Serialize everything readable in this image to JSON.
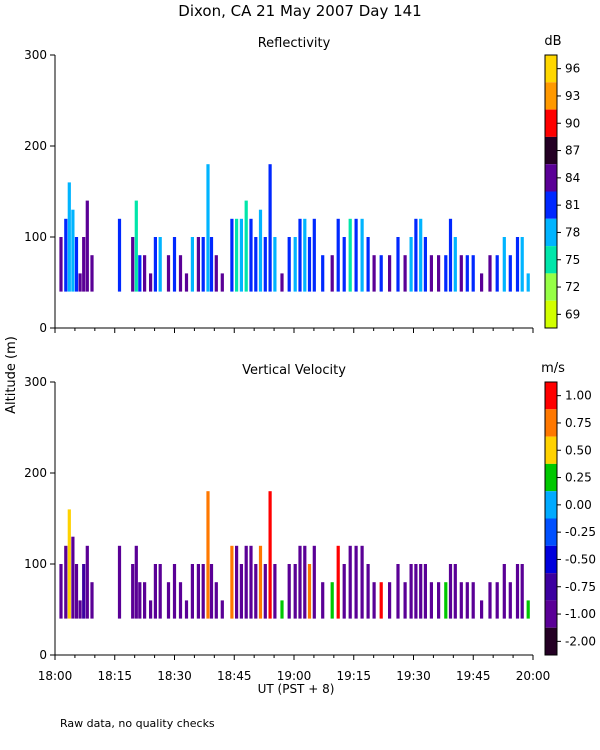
{
  "title": "Dixon, CA 21 May 2007  Day 141",
  "footnote": "Raw data, no quality checks",
  "chart_data": [
    {
      "type": "heatmap",
      "title": "Reflectivity",
      "xlabel": "UT  (PST + 8)",
      "ylabel": "Altitude (m)",
      "x_ticks": [
        "18:00",
        "18:15",
        "18:30",
        "18:45",
        "19:00",
        "19:15",
        "19:30",
        "19:45",
        "20:00"
      ],
      "xlim_minutes": [
        0,
        120
      ],
      "y_ticks": [
        0,
        100,
        200,
        300
      ],
      "ylim": [
        0,
        300
      ],
      "colorbar": {
        "unit": "dB",
        "labels": [
          "96",
          "93",
          "90",
          "87",
          "84",
          "81",
          "78",
          "75",
          "72",
          "69"
        ],
        "colors": [
          "#ffd700",
          "#ff9900",
          "#ff0000",
          "#240024",
          "#5a0096",
          "#0028ff",
          "#00b4ff",
          "#00e6aa",
          "#96ff46",
          "#d2ff00"
        ]
      },
      "columns": [
        {
          "t": 1.5,
          "top": 100,
          "color": "#5a0096"
        },
        {
          "t": 2.7,
          "top": 120,
          "color": "#0028ff"
        },
        {
          "t": 3.6,
          "top": 160,
          "color": "#00b4ff"
        },
        {
          "t": 4.5,
          "top": 130,
          "color": "#00b4ff"
        },
        {
          "t": 5.4,
          "top": 100,
          "color": "#0028ff"
        },
        {
          "t": 6.3,
          "top": 60,
          "color": "#5a0096"
        },
        {
          "t": 7.2,
          "top": 100,
          "color": "#5a0096"
        },
        {
          "t": 8.1,
          "top": 140,
          "color": "#5a0096"
        },
        {
          "t": 9.3,
          "top": 80,
          "color": "#5a0096"
        },
        {
          "t": 16.2,
          "top": 120,
          "color": "#0028ff"
        },
        {
          "t": 19.5,
          "top": 100,
          "color": "#5a0096"
        },
        {
          "t": 20.4,
          "top": 140,
          "color": "#00e6aa"
        },
        {
          "t": 21.3,
          "top": 80,
          "color": "#0028ff"
        },
        {
          "t": 22.5,
          "top": 80,
          "color": "#5a0096"
        },
        {
          "t": 24.0,
          "top": 60,
          "color": "#5a0096"
        },
        {
          "t": 25.2,
          "top": 100,
          "color": "#0028ff"
        },
        {
          "t": 26.4,
          "top": 100,
          "color": "#00b4ff"
        },
        {
          "t": 28.5,
          "top": 80,
          "color": "#5a0096"
        },
        {
          "t": 30.0,
          "top": 100,
          "color": "#0028ff"
        },
        {
          "t": 31.5,
          "top": 80,
          "color": "#5a0096"
        },
        {
          "t": 33.0,
          "top": 60,
          "color": "#5a0096"
        },
        {
          "t": 34.5,
          "top": 100,
          "color": "#00b4ff"
        },
        {
          "t": 36.0,
          "top": 100,
          "color": "#5a0096"
        },
        {
          "t": 37.2,
          "top": 100,
          "color": "#0028ff"
        },
        {
          "t": 38.4,
          "top": 180,
          "color": "#00b4ff"
        },
        {
          "t": 39.3,
          "top": 100,
          "color": "#0028ff"
        },
        {
          "t": 40.5,
          "top": 80,
          "color": "#5a0096"
        },
        {
          "t": 42.0,
          "top": 60,
          "color": "#5a0096"
        },
        {
          "t": 44.4,
          "top": 120,
          "color": "#0028ff"
        },
        {
          "t": 45.6,
          "top": 120,
          "color": "#00e6aa"
        },
        {
          "t": 46.8,
          "top": 120,
          "color": "#00b4ff"
        },
        {
          "t": 48.0,
          "top": 140,
          "color": "#00e6aa"
        },
        {
          "t": 49.2,
          "top": 120,
          "color": "#0028ff"
        },
        {
          "t": 50.4,
          "top": 100,
          "color": "#0028ff"
        },
        {
          "t": 51.6,
          "top": 130,
          "color": "#00b4ff"
        },
        {
          "t": 52.8,
          "top": 100,
          "color": "#0028ff"
        },
        {
          "t": 54.0,
          "top": 180,
          "color": "#0028ff"
        },
        {
          "t": 55.2,
          "top": 100,
          "color": "#00b4ff"
        },
        {
          "t": 57.0,
          "top": 60,
          "color": "#5a0096"
        },
        {
          "t": 58.8,
          "top": 100,
          "color": "#0028ff"
        },
        {
          "t": 60.3,
          "top": 100,
          "color": "#00b4ff"
        },
        {
          "t": 61.5,
          "top": 120,
          "color": "#0028ff"
        },
        {
          "t": 62.7,
          "top": 120,
          "color": "#00b4ff"
        },
        {
          "t": 63.9,
          "top": 100,
          "color": "#0028ff"
        },
        {
          "t": 65.1,
          "top": 120,
          "color": "#0028ff"
        },
        {
          "t": 67.2,
          "top": 80,
          "color": "#0028ff"
        },
        {
          "t": 69.6,
          "top": 80,
          "color": "#5a0096"
        },
        {
          "t": 71.1,
          "top": 120,
          "color": "#0028ff"
        },
        {
          "t": 72.6,
          "top": 100,
          "color": "#0028ff"
        },
        {
          "t": 74.1,
          "top": 120,
          "color": "#00e6aa"
        },
        {
          "t": 75.6,
          "top": 120,
          "color": "#0028ff"
        },
        {
          "t": 77.1,
          "top": 120,
          "color": "#00b4ff"
        },
        {
          "t": 78.6,
          "top": 100,
          "color": "#0028ff"
        },
        {
          "t": 80.1,
          "top": 80,
          "color": "#5a0096"
        },
        {
          "t": 81.9,
          "top": 80,
          "color": "#0028ff"
        },
        {
          "t": 84.0,
          "top": 80,
          "color": "#5a0096"
        },
        {
          "t": 86.1,
          "top": 100,
          "color": "#0028ff"
        },
        {
          "t": 87.9,
          "top": 80,
          "color": "#5a0096"
        },
        {
          "t": 89.4,
          "top": 100,
          "color": "#00b4ff"
        },
        {
          "t": 90.6,
          "top": 120,
          "color": "#0028ff"
        },
        {
          "t": 91.8,
          "top": 120,
          "color": "#00b4ff"
        },
        {
          "t": 93.0,
          "top": 100,
          "color": "#0028ff"
        },
        {
          "t": 94.5,
          "top": 80,
          "color": "#5a0096"
        },
        {
          "t": 96.3,
          "top": 80,
          "color": "#5a0096"
        },
        {
          "t": 98.1,
          "top": 80,
          "color": "#0028ff"
        },
        {
          "t": 99.3,
          "top": 120,
          "color": "#0028ff"
        },
        {
          "t": 100.5,
          "top": 100,
          "color": "#00b4ff"
        },
        {
          "t": 102.0,
          "top": 80,
          "color": "#5a0096"
        },
        {
          "t": 103.5,
          "top": 80,
          "color": "#0028ff"
        },
        {
          "t": 105.0,
          "top": 80,
          "color": "#0028ff"
        },
        {
          "t": 107.1,
          "top": 60,
          "color": "#5a0096"
        },
        {
          "t": 109.2,
          "top": 80,
          "color": "#5a0096"
        },
        {
          "t": 111.0,
          "top": 80,
          "color": "#0028ff"
        },
        {
          "t": 112.8,
          "top": 100,
          "color": "#00b4ff"
        },
        {
          "t": 114.3,
          "top": 80,
          "color": "#0028ff"
        },
        {
          "t": 116.1,
          "top": 100,
          "color": "#0028ff"
        },
        {
          "t": 117.3,
          "top": 100,
          "color": "#00b4ff"
        },
        {
          "t": 118.8,
          "top": 60,
          "color": "#00b4ff"
        }
      ]
    },
    {
      "type": "heatmap",
      "title": "Vertical Velocity",
      "xlabel": "UT  (PST + 8)",
      "ylabel": "Altitude (m)",
      "x_ticks": [
        "18:00",
        "18:15",
        "18:30",
        "18:45",
        "19:00",
        "19:15",
        "19:30",
        "19:45",
        "20:00"
      ],
      "xlim_minutes": [
        0,
        120
      ],
      "y_ticks": [
        0,
        100,
        200,
        300
      ],
      "ylim": [
        0,
        300
      ],
      "colorbar": {
        "unit": "m/s",
        "labels": [
          "1.00",
          "0.75",
          "0.50",
          "0.25",
          "0.00",
          "-0.25",
          "-0.50",
          "-0.75",
          "-1.00",
          "-2.00"
        ],
        "colors": [
          "#ff0000",
          "#ff7800",
          "#ffd200",
          "#00c800",
          "#00aaff",
          "#0050ff",
          "#0000dc",
          "#3c00a0",
          "#5a0096",
          "#240024"
        ]
      },
      "columns": [
        {
          "t": 1.5,
          "top": 100,
          "color": "#5a0096"
        },
        {
          "t": 2.7,
          "top": 120,
          "color": "#5a0096"
        },
        {
          "t": 3.6,
          "top": 160,
          "color": "#ffd200"
        },
        {
          "t": 4.5,
          "top": 130,
          "color": "#5a0096"
        },
        {
          "t": 5.4,
          "top": 100,
          "color": "#5a0096"
        },
        {
          "t": 6.3,
          "top": 60,
          "color": "#5a0096"
        },
        {
          "t": 7.2,
          "top": 100,
          "color": "#3c00a0"
        },
        {
          "t": 8.1,
          "top": 120,
          "color": "#5a0096"
        },
        {
          "t": 9.3,
          "top": 80,
          "color": "#5a0096"
        },
        {
          "t": 16.2,
          "top": 120,
          "color": "#5a0096"
        },
        {
          "t": 19.5,
          "top": 100,
          "color": "#5a0096"
        },
        {
          "t": 20.4,
          "top": 120,
          "color": "#5a0096"
        },
        {
          "t": 21.3,
          "top": 80,
          "color": "#5a0096"
        },
        {
          "t": 22.5,
          "top": 80,
          "color": "#5a0096"
        },
        {
          "t": 24.0,
          "top": 60,
          "color": "#5a0096"
        },
        {
          "t": 25.2,
          "top": 100,
          "color": "#5a0096"
        },
        {
          "t": 26.4,
          "top": 100,
          "color": "#5a0096"
        },
        {
          "t": 28.5,
          "top": 80,
          "color": "#5a0096"
        },
        {
          "t": 30.0,
          "top": 100,
          "color": "#5a0096"
        },
        {
          "t": 31.5,
          "top": 80,
          "color": "#5a0096"
        },
        {
          "t": 33.0,
          "top": 60,
          "color": "#5a0096"
        },
        {
          "t": 34.5,
          "top": 100,
          "color": "#5a0096"
        },
        {
          "t": 36.0,
          "top": 100,
          "color": "#5a0096"
        },
        {
          "t": 37.2,
          "top": 100,
          "color": "#5a0096"
        },
        {
          "t": 38.4,
          "top": 180,
          "color": "#ff7800"
        },
        {
          "t": 39.3,
          "top": 100,
          "color": "#5a0096"
        },
        {
          "t": 40.5,
          "top": 80,
          "color": "#5a0096"
        },
        {
          "t": 42.0,
          "top": 60,
          "color": "#5a0096"
        },
        {
          "t": 44.4,
          "top": 120,
          "color": "#ff7800"
        },
        {
          "t": 45.6,
          "top": 120,
          "color": "#5a0096"
        },
        {
          "t": 46.8,
          "top": 100,
          "color": "#5a0096"
        },
        {
          "t": 48.0,
          "top": 120,
          "color": "#5a0096"
        },
        {
          "t": 49.2,
          "top": 120,
          "color": "#5a0096"
        },
        {
          "t": 50.4,
          "top": 100,
          "color": "#5a0096"
        },
        {
          "t": 51.6,
          "top": 120,
          "color": "#ff7800"
        },
        {
          "t": 52.8,
          "top": 100,
          "color": "#5a0096"
        },
        {
          "t": 54.0,
          "top": 180,
          "color": "#ff0000"
        },
        {
          "t": 55.2,
          "top": 100,
          "color": "#5a0096"
        },
        {
          "t": 57.0,
          "top": 60,
          "color": "#00c800"
        },
        {
          "t": 58.8,
          "top": 100,
          "color": "#5a0096"
        },
        {
          "t": 60.3,
          "top": 100,
          "color": "#5a0096"
        },
        {
          "t": 61.5,
          "top": 120,
          "color": "#5a0096"
        },
        {
          "t": 62.7,
          "top": 120,
          "color": "#5a0096"
        },
        {
          "t": 63.9,
          "top": 100,
          "color": "#ff7800"
        },
        {
          "t": 65.1,
          "top": 120,
          "color": "#5a0096"
        },
        {
          "t": 67.2,
          "top": 80,
          "color": "#5a0096"
        },
        {
          "t": 69.6,
          "top": 80,
          "color": "#00c800"
        },
        {
          "t": 71.1,
          "top": 120,
          "color": "#ff0000"
        },
        {
          "t": 72.6,
          "top": 100,
          "color": "#5a0096"
        },
        {
          "t": 74.1,
          "top": 120,
          "color": "#5a0096"
        },
        {
          "t": 75.6,
          "top": 120,
          "color": "#5a0096"
        },
        {
          "t": 77.1,
          "top": 120,
          "color": "#5a0096"
        },
        {
          "t": 78.6,
          "top": 100,
          "color": "#5a0096"
        },
        {
          "t": 80.1,
          "top": 80,
          "color": "#5a0096"
        },
        {
          "t": 81.9,
          "top": 80,
          "color": "#ff0000"
        },
        {
          "t": 84.0,
          "top": 80,
          "color": "#5a0096"
        },
        {
          "t": 86.1,
          "top": 100,
          "color": "#5a0096"
        },
        {
          "t": 87.9,
          "top": 80,
          "color": "#5a0096"
        },
        {
          "t": 89.4,
          "top": 100,
          "color": "#5a0096"
        },
        {
          "t": 90.6,
          "top": 100,
          "color": "#5a0096"
        },
        {
          "t": 91.8,
          "top": 100,
          "color": "#5a0096"
        },
        {
          "t": 93.0,
          "top": 100,
          "color": "#5a0096"
        },
        {
          "t": 94.5,
          "top": 80,
          "color": "#5a0096"
        },
        {
          "t": 96.3,
          "top": 80,
          "color": "#5a0096"
        },
        {
          "t": 98.1,
          "top": 80,
          "color": "#00c800"
        },
        {
          "t": 99.3,
          "top": 100,
          "color": "#5a0096"
        },
        {
          "t": 100.5,
          "top": 100,
          "color": "#5a0096"
        },
        {
          "t": 102.0,
          "top": 80,
          "color": "#5a0096"
        },
        {
          "t": 103.5,
          "top": 80,
          "color": "#5a0096"
        },
        {
          "t": 105.0,
          "top": 80,
          "color": "#5a0096"
        },
        {
          "t": 107.1,
          "top": 60,
          "color": "#5a0096"
        },
        {
          "t": 109.2,
          "top": 80,
          "color": "#5a0096"
        },
        {
          "t": 111.0,
          "top": 80,
          "color": "#5a0096"
        },
        {
          "t": 112.8,
          "top": 100,
          "color": "#5a0096"
        },
        {
          "t": 114.3,
          "top": 80,
          "color": "#5a0096"
        },
        {
          "t": 116.1,
          "top": 100,
          "color": "#5a0096"
        },
        {
          "t": 117.3,
          "top": 100,
          "color": "#5a0096"
        },
        {
          "t": 118.8,
          "top": 60,
          "color": "#00c800"
        }
      ]
    }
  ]
}
